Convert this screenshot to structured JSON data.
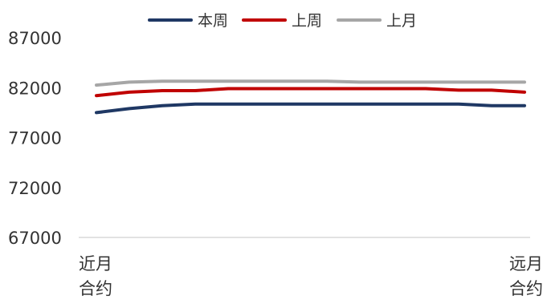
{
  "chart_data": {
    "type": "line",
    "title": "",
    "xlabel": "",
    "ylabel": "",
    "ylim": [
      67000,
      87000
    ],
    "yticks": [
      "87000",
      "82000",
      "77000",
      "72000",
      "67000"
    ],
    "x_tick_labels": [
      {
        "line1": "近月",
        "line2": "合约"
      },
      {
        "line1": "远月",
        "line2": "合约"
      }
    ],
    "legend_position": "top-center",
    "grid": false,
    "series": [
      {
        "name": "本周",
        "color": "#1F3864",
        "values": [
          79500,
          79900,
          80200,
          80350,
          80350,
          80350,
          80350,
          80350,
          80350,
          80350,
          80350,
          80350,
          80200,
          80200
        ]
      },
      {
        "name": "上周",
        "color": "#C00000",
        "values": [
          81200,
          81550,
          81700,
          81700,
          81900,
          81900,
          81900,
          81900,
          81900,
          81900,
          81900,
          81750,
          81750,
          81550
        ]
      },
      {
        "name": "上月",
        "color": "#A6A6A6",
        "values": [
          82250,
          82550,
          82650,
          82650,
          82650,
          82650,
          82650,
          82650,
          82550,
          82550,
          82550,
          82550,
          82550,
          82550
        ]
      }
    ]
  }
}
